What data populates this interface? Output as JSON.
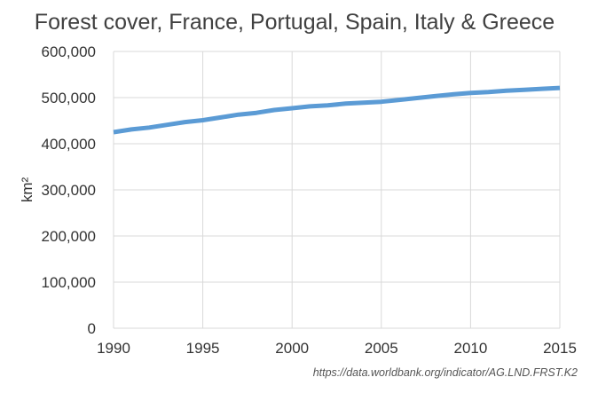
{
  "chart_data": {
    "type": "line",
    "title": "Forest cover, France, Portugal, Spain, Italy & Greece",
    "xlabel": "",
    "ylabel": "km²",
    "source": "https://data.worldbank.org/indicator/AG.LND.FRST.K2",
    "xlim": [
      1990,
      2015
    ],
    "ylim": [
      0,
      600000
    ],
    "x_ticks": [
      1990,
      1995,
      2000,
      2005,
      2010,
      2015
    ],
    "y_ticks": [
      0,
      100000,
      200000,
      300000,
      400000,
      500000,
      600000
    ],
    "y_tick_labels": [
      "0",
      "100,000",
      "200,000",
      "300,000",
      "400,000",
      "500,000",
      "600,000"
    ],
    "grid": true,
    "legend": "none",
    "series": [
      {
        "name": "",
        "color": "#5b9bd5",
        "x": [
          1990,
          1991,
          1992,
          1993,
          1994,
          1995,
          1996,
          1997,
          1998,
          1999,
          2000,
          2001,
          2002,
          2003,
          2004,
          2005,
          2006,
          2007,
          2008,
          2009,
          2010,
          2011,
          2012,
          2013,
          2014,
          2015
        ],
        "y": [
          425000,
          431000,
          435000,
          441000,
          447000,
          451000,
          457000,
          463000,
          467000,
          473000,
          477000,
          481000,
          483000,
          487000,
          489000,
          491000,
          495000,
          499000,
          503000,
          507000,
          510000,
          512000,
          515000,
          517000,
          519000,
          521000
        ]
      }
    ]
  }
}
